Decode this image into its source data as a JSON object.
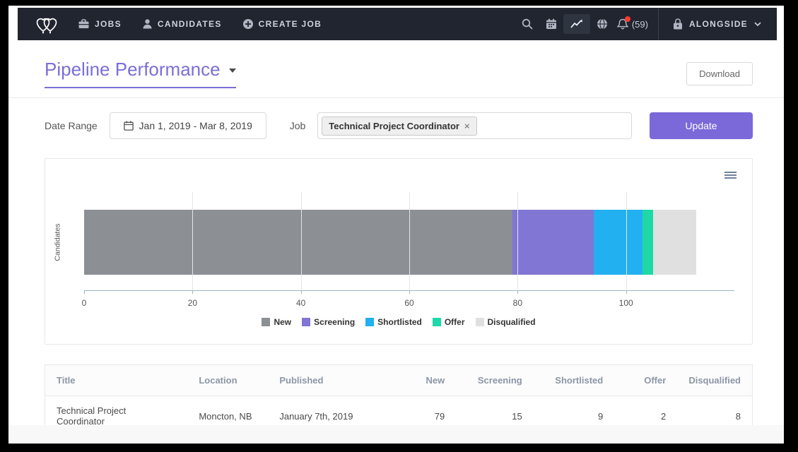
{
  "colors": {
    "accent": "#7b68d9",
    "navbar_bg": "#21252f",
    "notification_dot": "#ff3b30",
    "axis": "#9fb6bc"
  },
  "navbar": {
    "brand": "alongside-hearts-logo",
    "jobs": "JOBS",
    "candidates": "CANDIDATES",
    "create_job": "CREATE JOB",
    "icons": [
      "search",
      "calendar",
      "analytics",
      "globe",
      "notifications"
    ],
    "notification_count": "(59)",
    "account_name": "ALONGSIDE"
  },
  "header": {
    "title": "Pipeline Performance",
    "download_label": "Download"
  },
  "filters": {
    "date_range_label": "Date Range",
    "date_range_value": "Jan 1, 2019 - Mar 8, 2019",
    "job_label": "Job",
    "job_tag": "Technical Project Coordinator",
    "job_tag_remove": "×",
    "update_label": "Update"
  },
  "chart_data": {
    "type": "bar",
    "orientation": "horizontal-stacked",
    "categories": [
      "Candidates"
    ],
    "series": [
      {
        "name": "New",
        "values": [
          79
        ],
        "color": "#8c8f94"
      },
      {
        "name": "Screening",
        "values": [
          15
        ],
        "color": "#8176d3"
      },
      {
        "name": "Shortlisted",
        "values": [
          9
        ],
        "color": "#22b0f0"
      },
      {
        "name": "Offer",
        "values": [
          2
        ],
        "color": "#1fd8a7"
      },
      {
        "name": "Disqualified",
        "values": [
          8
        ],
        "color": "#e0e0e0"
      }
    ],
    "title": "",
    "xlabel": "",
    "ylabel": "Candidates",
    "xlim": [
      0,
      120
    ],
    "xticks": [
      0,
      20,
      40,
      60,
      80,
      100
    ],
    "grid": true,
    "legend_position": "bottom"
  },
  "table": {
    "columns": [
      {
        "label": "Title",
        "align": "left"
      },
      {
        "label": "Location",
        "align": "left"
      },
      {
        "label": "Published",
        "align": "left"
      },
      {
        "label": "New",
        "align": "right"
      },
      {
        "label": "Screening",
        "align": "right"
      },
      {
        "label": "Shortlisted",
        "align": "right"
      },
      {
        "label": "Offer",
        "align": "right"
      },
      {
        "label": "Disqualified",
        "align": "right"
      }
    ],
    "rows": [
      [
        "Technical Project Coordinator",
        "Moncton, NB",
        "January 7th, 2019",
        "79",
        "15",
        "9",
        "2",
        "8"
      ]
    ]
  }
}
